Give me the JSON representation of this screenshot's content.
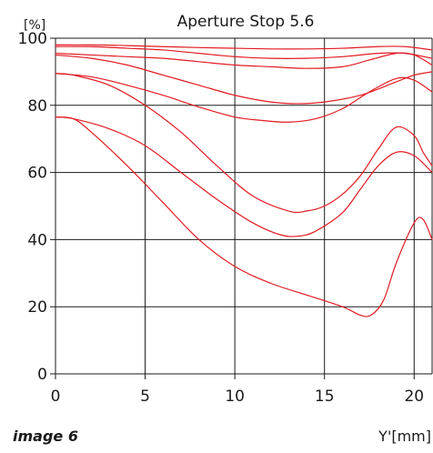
{
  "caption": "image 6",
  "chart_data": {
    "type": "line",
    "title": "Aperture Stop 5.6",
    "ylabel": "[%]",
    "xlabel": "Y'[mm]",
    "xlim": [
      0,
      21
    ],
    "ylim": [
      0,
      100
    ],
    "xticks": [
      0,
      5,
      10,
      15,
      20
    ],
    "yticks": [
      0,
      20,
      40,
      60,
      80,
      100
    ],
    "x_tick_labels": [
      "0",
      "5",
      "10",
      "15",
      "20"
    ],
    "y_tick_labels": [
      "0",
      "20",
      "40",
      "60",
      "80",
      "100"
    ],
    "grid": true,
    "line_color": "#e11b22",
    "series": [
      {
        "x": [
          0,
          2,
          4,
          6,
          8,
          10,
          12,
          14,
          16,
          18,
          19.5,
          21
        ],
        "y": [
          98,
          98,
          97.8,
          97.5,
          97.2,
          97,
          96.8,
          96.8,
          97,
          97.5,
          97.5,
          96.5
        ]
      },
      {
        "x": [
          0,
          2,
          4,
          6,
          8,
          10,
          12,
          14,
          16,
          18,
          19.5,
          21
        ],
        "y": [
          97.5,
          97.5,
          97,
          96.5,
          95.5,
          94.5,
          94,
          94,
          94.5,
          95.5,
          95.5,
          94
        ]
      },
      {
        "x": [
          0,
          2,
          4,
          6,
          8,
          10,
          12,
          14,
          16,
          17.5,
          19,
          20,
          21
        ],
        "y": [
          95.5,
          95,
          94.5,
          94,
          93,
          92,
          91.5,
          91,
          91.5,
          93.5,
          95.5,
          95,
          92
        ]
      },
      {
        "x": [
          0,
          2,
          4,
          6,
          8,
          10,
          12,
          13.5,
          15,
          17,
          19,
          20,
          21
        ],
        "y": [
          95,
          94,
          92,
          89,
          86,
          83,
          81,
          80.5,
          81,
          83,
          87,
          89,
          90
        ]
      },
      {
        "x": [
          0,
          2,
          4,
          6,
          8,
          10,
          11.5,
          13,
          14.5,
          16,
          17.5,
          19,
          20,
          21
        ],
        "y": [
          89.5,
          88.5,
          86,
          83,
          79.5,
          76.5,
          75.5,
          75,
          76,
          79,
          84,
          88,
          87.5,
          84
        ]
      },
      {
        "x": [
          0,
          1,
          3,
          5,
          7,
          9,
          11,
          13,
          14,
          15,
          16,
          17,
          18,
          19,
          20,
          20.5,
          21
        ],
        "y": [
          89.5,
          89,
          86,
          80,
          72,
          62,
          53,
          48.5,
          48.5,
          50,
          53.5,
          59,
          67,
          73.5,
          71,
          66,
          62
        ]
      },
      {
        "x": [
          0,
          1,
          3,
          5,
          7,
          9,
          11,
          12.5,
          13.5,
          14.5,
          16,
          17,
          18,
          19,
          20,
          21
        ],
        "y": [
          76.5,
          76,
          73,
          68,
          60,
          52,
          45,
          41.5,
          41,
          42.5,
          48,
          55,
          62,
          66,
          65,
          60
        ]
      },
      {
        "x": [
          0,
          1,
          2,
          4,
          6,
          8,
          10,
          12,
          14,
          16,
          17,
          17.6,
          18.3,
          19,
          20,
          20.5,
          21
        ],
        "y": [
          76.5,
          76,
          72,
          62,
          51,
          40,
          32,
          27,
          23.5,
          20,
          17.5,
          17.5,
          22,
          33,
          45,
          46,
          40
        ]
      }
    ]
  }
}
